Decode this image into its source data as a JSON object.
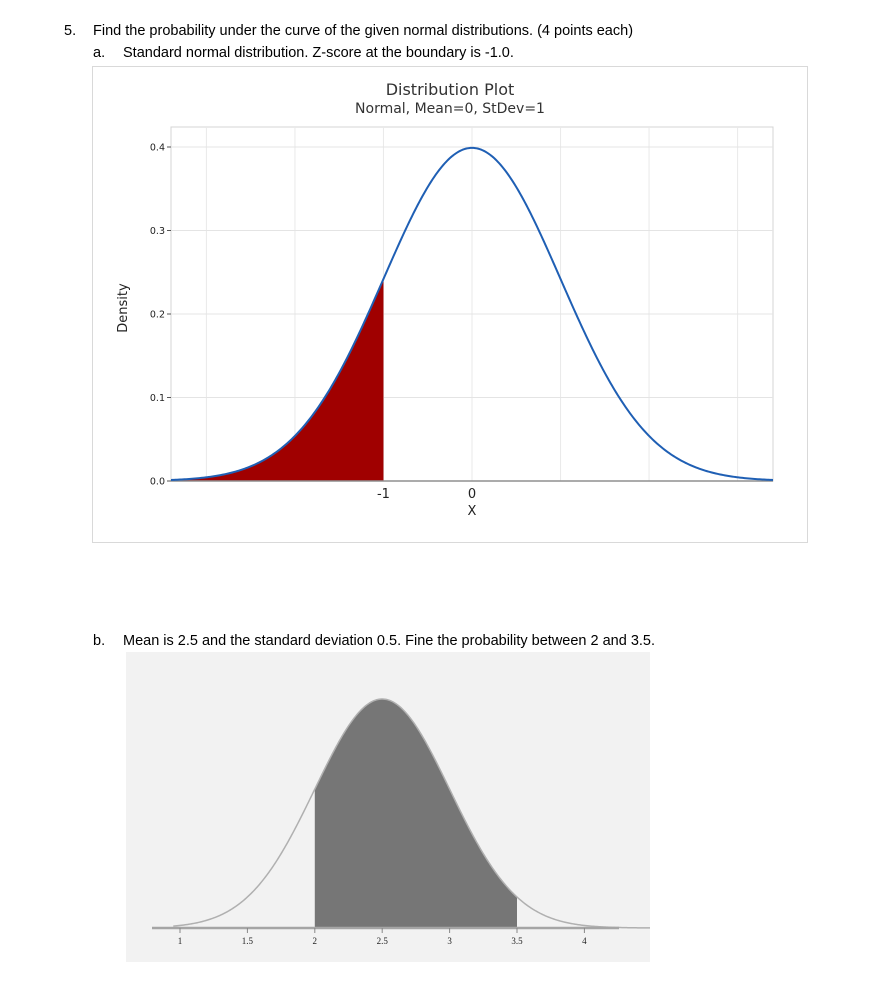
{
  "question": {
    "number": "5.",
    "text": "Find the probability under the curve of the given normal distributions. (4 points each)"
  },
  "part_a": {
    "label": "a.",
    "text": "Standard normal distribution.  Z-score at the boundary is -1.0."
  },
  "part_b": {
    "label": "b.",
    "text": "Mean is 2.5 and the standard deviation 0.5.  Fine the probability between 2 and 3.5."
  },
  "chart_data": [
    {
      "type": "area",
      "title": "Distribution Plot",
      "subtitle": "Normal, Mean=0, StDev=1",
      "xlabel": "X",
      "ylabel": "Density",
      "distribution": "normal",
      "mean": 0,
      "stdev": 1,
      "xlim": [
        -3.4,
        3.4
      ],
      "ylim": [
        0,
        0.4
      ],
      "yticks": [
        "0.0",
        "0.1",
        "0.2",
        "0.3",
        "0.4"
      ],
      "xticks": [
        "-1",
        "0"
      ],
      "xtick_values": [
        -1,
        0
      ],
      "shaded_region": {
        "from": -3.4,
        "to": -1
      },
      "grid": true,
      "line_color": "#1f5fb4",
      "fill_color": "#a00000"
    },
    {
      "type": "area",
      "distribution": "normal",
      "mean": 2.5,
      "stdev": 0.5,
      "xlim": [
        0.95,
        4.5
      ],
      "ylim": [
        0,
        0.8
      ],
      "xticks": [
        "1",
        "1.5",
        "2",
        "2.5",
        "3",
        "3.5",
        "4"
      ],
      "xtick_values": [
        1,
        1.5,
        2,
        2.5,
        3,
        3.5,
        4
      ],
      "shaded_region": {
        "from": 2,
        "to": 3.5
      },
      "grid": false,
      "line_color": "#b0b0b0",
      "fill_color": "#767676"
    }
  ]
}
